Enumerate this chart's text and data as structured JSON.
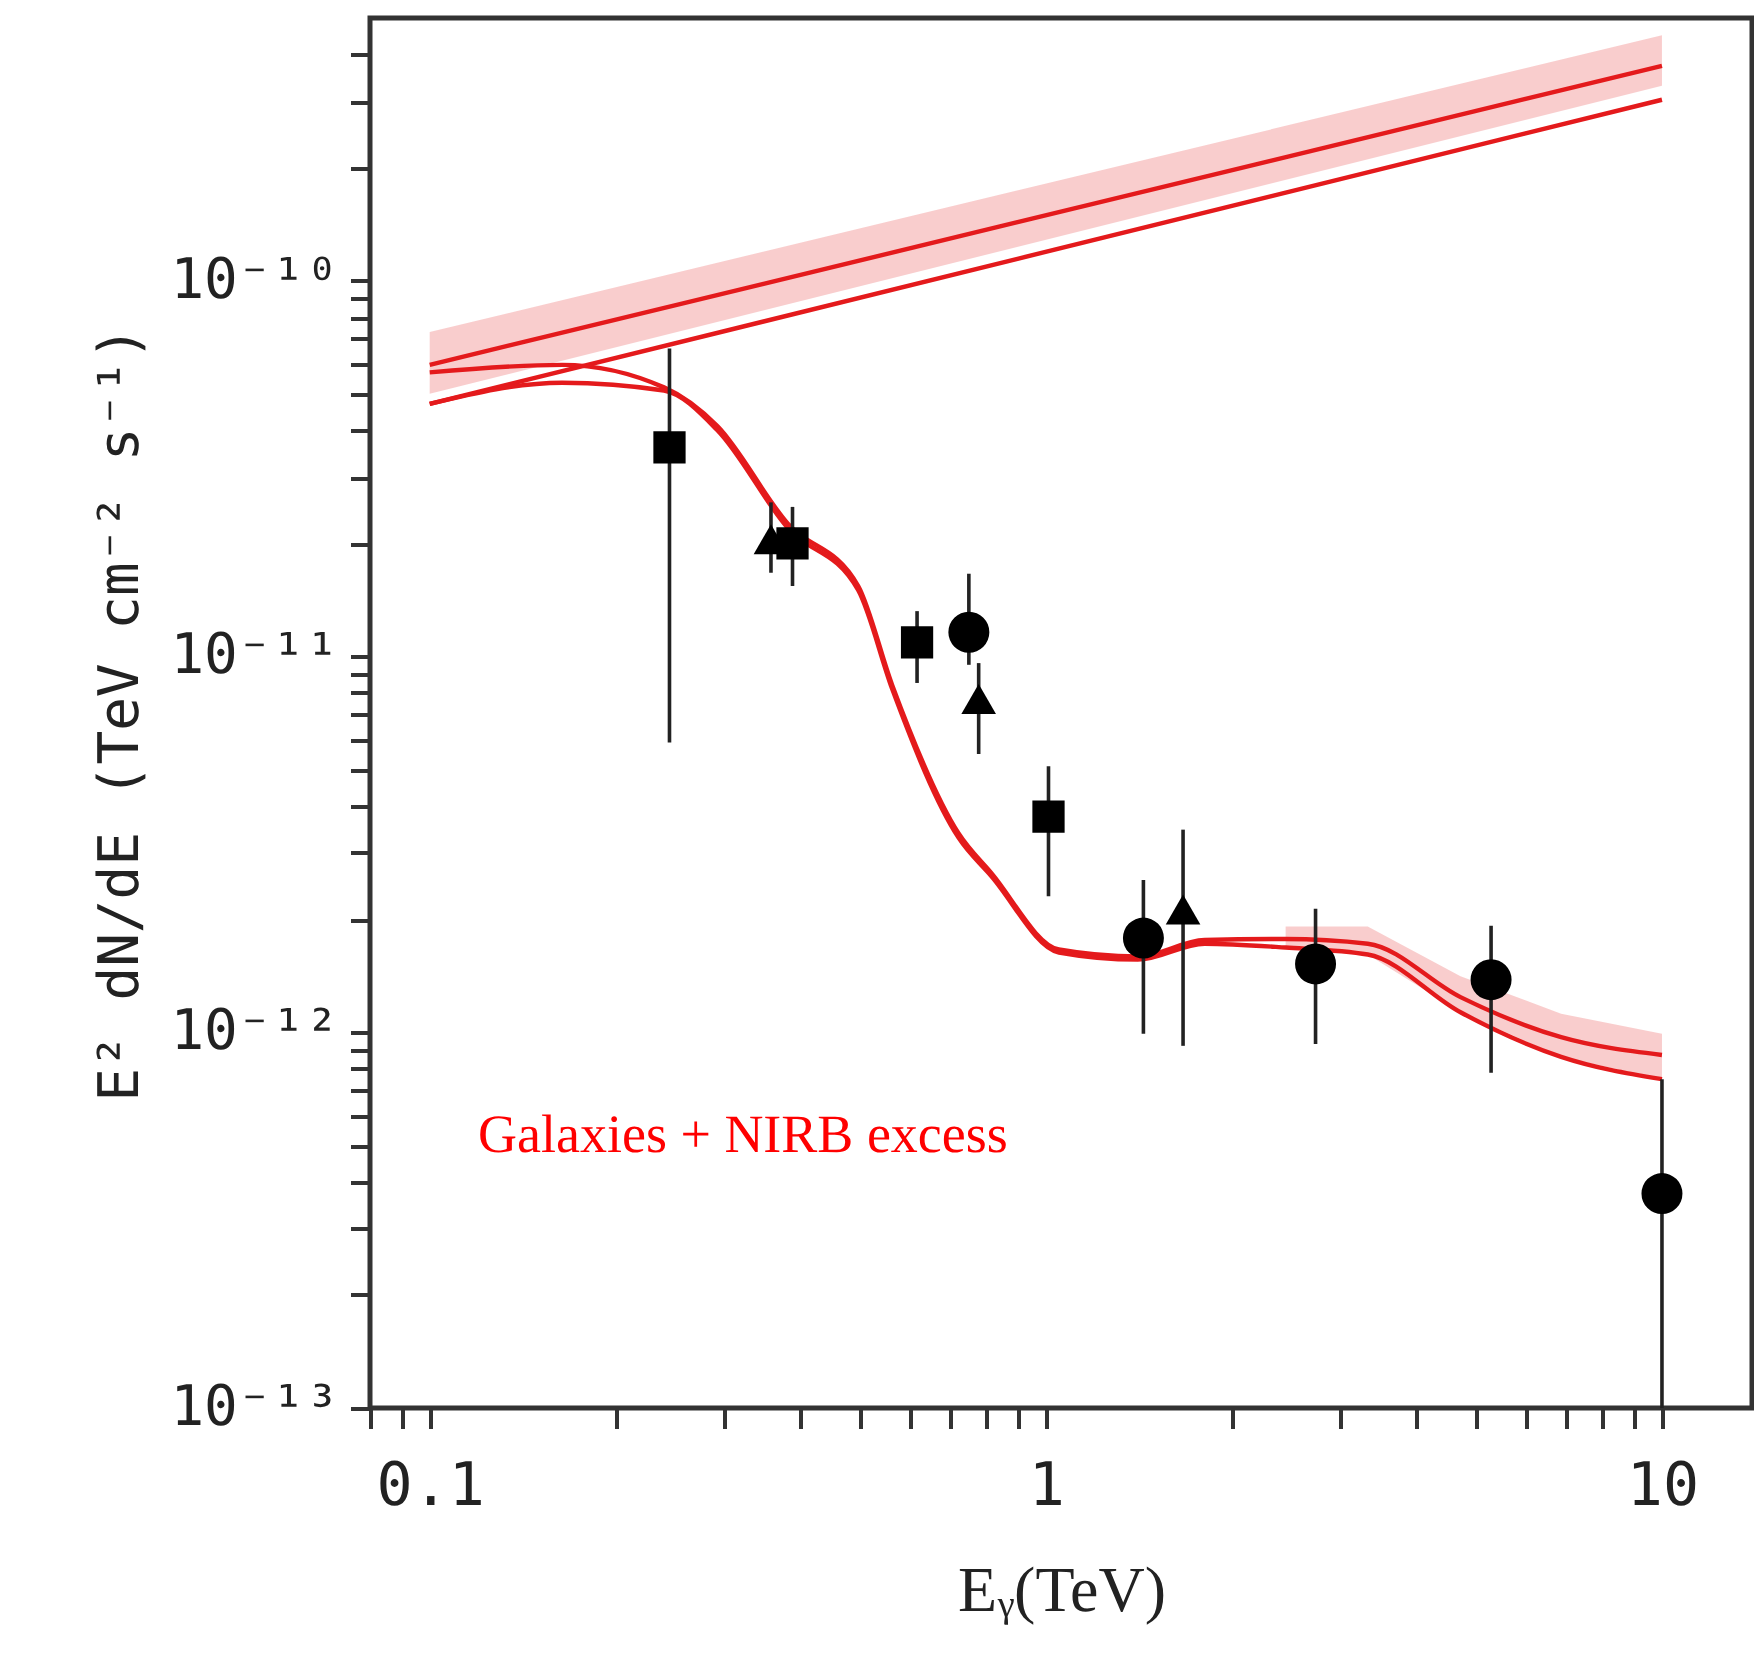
{
  "chart_data": {
    "type": "scatter",
    "xlabel": "Eᵧ(TeV)",
    "ylabel": "E² dN/dE (TeV cm⁻² s⁻¹)",
    "log": "xy",
    "grid": false,
    "annotations": [
      "Galaxies + NIRB excess"
    ],
    "xlim": [
      0.08,
      14
    ],
    "ylim": [
      1e-13,
      5e-10
    ],
    "xticks": [
      {
        "value": 0.08,
        "label": null
      },
      {
        "value": 0.09,
        "label": null
      },
      0.1,
      {
        "value": 0.2,
        "label": null
      },
      {
        "value": 0.3,
        "label": null
      },
      {
        "value": 0.4,
        "label": null
      },
      {
        "value": 0.5,
        "label": null
      },
      {
        "value": 0.6,
        "label": null
      },
      {
        "value": 0.7,
        "label": null
      },
      {
        "value": 0.8,
        "label": null
      },
      {
        "value": 0.9,
        "label": null
      },
      1,
      {
        "value": 2,
        "label": null
      },
      {
        "value": 3,
        "label": null
      },
      {
        "value": 4,
        "label": null
      },
      {
        "value": 5,
        "label": null
      },
      {
        "value": 6,
        "label": null
      },
      {
        "value": 7,
        "label": null
      },
      {
        "value": 8,
        "label": null
      },
      {
        "value": 9,
        "label": null
      },
      10
    ],
    "yticks": [
      {
        "value": 1e-13,
        "label": "10⁻¹³"
      },
      {
        "value": 2e-13,
        "label": null
      },
      {
        "value": 3e-13,
        "label": null
      },
      {
        "value": 4e-13,
        "label": null
      },
      {
        "value": 5e-13,
        "label": null
      },
      {
        "value": 6e-13,
        "label": null
      },
      {
        "value": 7e-13,
        "label": null
      },
      {
        "value": 8e-13,
        "label": null
      },
      {
        "value": 9e-13,
        "label": null
      },
      {
        "value": 1e-12,
        "label": "10⁻¹²"
      },
      {
        "value": 2e-12,
        "label": null
      },
      {
        "value": 3e-12,
        "label": null
      },
      {
        "value": 4e-12,
        "label": null
      },
      {
        "value": 5e-12,
        "label": null
      },
      {
        "value": 6e-12,
        "label": null
      },
      {
        "value": 7e-12,
        "label": null
      },
      {
        "value": 8e-12,
        "label": null
      },
      {
        "value": 9e-12,
        "label": null
      },
      {
        "value": 1e-11,
        "label": "10⁻¹¹"
      },
      {
        "value": 2e-11,
        "label": null
      },
      {
        "value": 3e-11,
        "label": null
      },
      {
        "value": 4e-11,
        "label": null
      },
      {
        "value": 5e-11,
        "label": null
      },
      {
        "value": 6e-11,
        "label": null
      },
      {
        "value": 7e-11,
        "label": null
      },
      {
        "value": 8e-11,
        "label": null
      },
      {
        "value": 9e-11,
        "label": null
      },
      {
        "value": 1e-10,
        "label": "10⁻¹⁰"
      },
      {
        "value": 2e-10,
        "label": null
      },
      {
        "value": 3e-10,
        "label": null
      },
      {
        "value": 4e-10,
        "label": null
      }
    ],
    "series": [
      {
        "type": "line",
        "color": "#e41a1c",
        "x": [
          0.1,
          10
        ],
        "values": [
          5.97e-11,
          3.73e-10
        ],
        "lower": [
          5e-11,
          3.3e-10
        ],
        "upper": [
          7.3e-11,
          4.5e-10
        ]
      },
      {
        "type": "line",
        "color": "#e41a1c",
        "x": [
          0.1,
          10
        ],
        "values": [
          4.7e-11,
          3.03e-10
        ]
      },
      {
        "type": "line",
        "color": "#e41a1c",
        "x": [
          0.1,
          0.164,
          0.24,
          0.293,
          0.381,
          0.496,
          0.563,
          0.721,
          0.816,
          1.05,
          1.41,
          1.81,
          2.45,
          3.33,
          4.71,
          6.86,
          10
        ],
        "values": [
          5.7e-11,
          5.97e-11,
          5.2e-11,
          4.1e-11,
          2.26e-11,
          1.54e-11,
          8.4e-12,
          3.39e-12,
          2.65e-12,
          1.66e-12,
          1.59e-12,
          1.76e-12,
          1.77e-12,
          1.72e-12,
          1.24e-12,
          9.7e-13,
          8.7e-13
        ],
        "lower": [
          null,
          null,
          null,
          null,
          null,
          null,
          null,
          null,
          null,
          null,
          null,
          null,
          1.68e-12,
          1.61e-12,
          1.13e-12,
          8.6e-13,
          7.5e-13
        ],
        "upper": [
          null,
          null,
          null,
          null,
          null,
          null,
          null,
          null,
          null,
          null,
          null,
          null,
          1.91e-12,
          1.91e-12,
          1.41e-12,
          1.12e-12,
          9.9e-13
        ]
      },
      {
        "type": "line",
        "color": "#e41a1c",
        "x": [
          0.1,
          0.164,
          0.24,
          0.293,
          0.381,
          0.496,
          0.563,
          0.721,
          0.816,
          1.05,
          1.41,
          1.81,
          2.45,
          3.33,
          4.71,
          6.86,
          10
        ],
        "values": [
          4.7e-11,
          5.35e-11,
          5.1e-11,
          4e-11,
          2.2e-11,
          1.5e-11,
          8.2e-12,
          3.3e-12,
          2.6e-12,
          1.63e-12,
          1.56e-12,
          1.72e-12,
          1.68e-12,
          1.61e-12,
          1.13e-12,
          8.6e-13,
          7.5e-13
        ]
      },
      {
        "marker": "square",
        "color": "#000000",
        "x": [
          0.245,
          0.388,
          0.618,
          1.01
        ],
        "values": [
          3.6e-11,
          2e-11,
          1.09e-11,
          3.75e-12
        ],
        "errors": [
          [
            5.9e-12,
            6.6e-11
          ],
          [
            1.54e-11,
            2.5e-11
          ],
          [
            8.5e-12,
            1.32e-11
          ],
          [
            2.3e-12,
            5.1e-12
          ]
        ]
      },
      {
        "marker": "triangle",
        "color": "#000000",
        "x": [
          0.358,
          0.778,
          1.67
        ],
        "values": [
          2.05e-11,
          7.7e-12,
          2.12e-12
        ],
        "errors": [
          [
            1.67e-11,
            2.57e-11
          ],
          [
            5.5e-12,
            9.6e-12
          ],
          [
            9.2e-13,
            3.46e-12
          ]
        ]
      },
      {
        "marker": "circle",
        "color": "#000000",
        "x": [
          0.75,
          1.44,
          2.74,
          5.28,
          10
        ],
        "values": [
          1.16e-11,
          1.78e-12,
          1.52e-12,
          1.38e-12,
          3.72e-13
        ],
        "errors": [
          [
            9.5e-12,
            1.66e-11
          ],
          [
            9.9e-13,
            2.54e-12
          ],
          [
            9.3e-13,
            2.13e-12
          ],
          [
            7.8e-13,
            1.92e-12
          ],
          [
            1e-13,
            7.5e-13
          ]
        ]
      }
    ]
  }
}
